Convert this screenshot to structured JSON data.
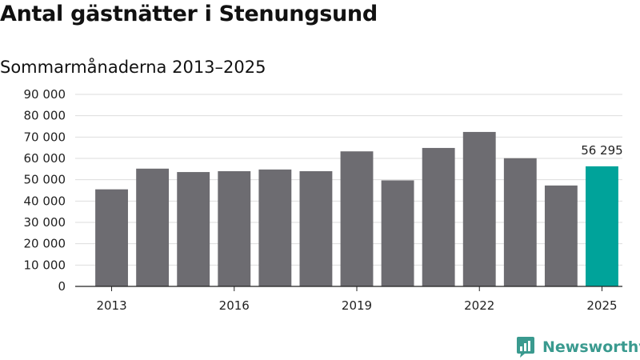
{
  "header": {
    "title": "Antal gästnätter i Stenungsund",
    "subtitle": "Sommarmånaderna 2013–2025"
  },
  "brand": {
    "name": "Newsworthy"
  },
  "colors": {
    "bar": "#6d6c71",
    "highlight": "#00a39a",
    "grid": "#dddddd",
    "axis": "#222222",
    "brand": "#3a9a8f"
  },
  "chart_data": {
    "type": "bar",
    "title": "Antal gästnätter i Stenungsund",
    "subtitle": "Sommarmånaderna 2013–2025",
    "xlabel": "",
    "ylabel": "",
    "categories": [
      "2013",
      "2014",
      "2015",
      "2016",
      "2017",
      "2018",
      "2019",
      "2020",
      "2021",
      "2022",
      "2023",
      "2024",
      "2025"
    ],
    "values": [
      45500,
      55200,
      53600,
      54000,
      54800,
      54000,
      63300,
      49700,
      64900,
      72400,
      60100,
      47300,
      56295
    ],
    "x_tick_labels": [
      "2013",
      "",
      "",
      "2016",
      "",
      "",
      "2019",
      "",
      "",
      "2022",
      "",
      "",
      "2025"
    ],
    "y_ticks": [
      0,
      10000,
      20000,
      30000,
      40000,
      50000,
      60000,
      70000,
      80000,
      90000
    ],
    "y_tick_labels": [
      "0",
      "10 000",
      "20 000",
      "30 000",
      "40 000",
      "50 000",
      "60 000",
      "70 000",
      "80 000",
      "90 000"
    ],
    "ylim": [
      0,
      90000
    ],
    "highlight_index": 12,
    "data_labels": [
      {
        "index": 12,
        "text": "56 295"
      }
    ],
    "grid": "horizontal",
    "legend": "none"
  }
}
